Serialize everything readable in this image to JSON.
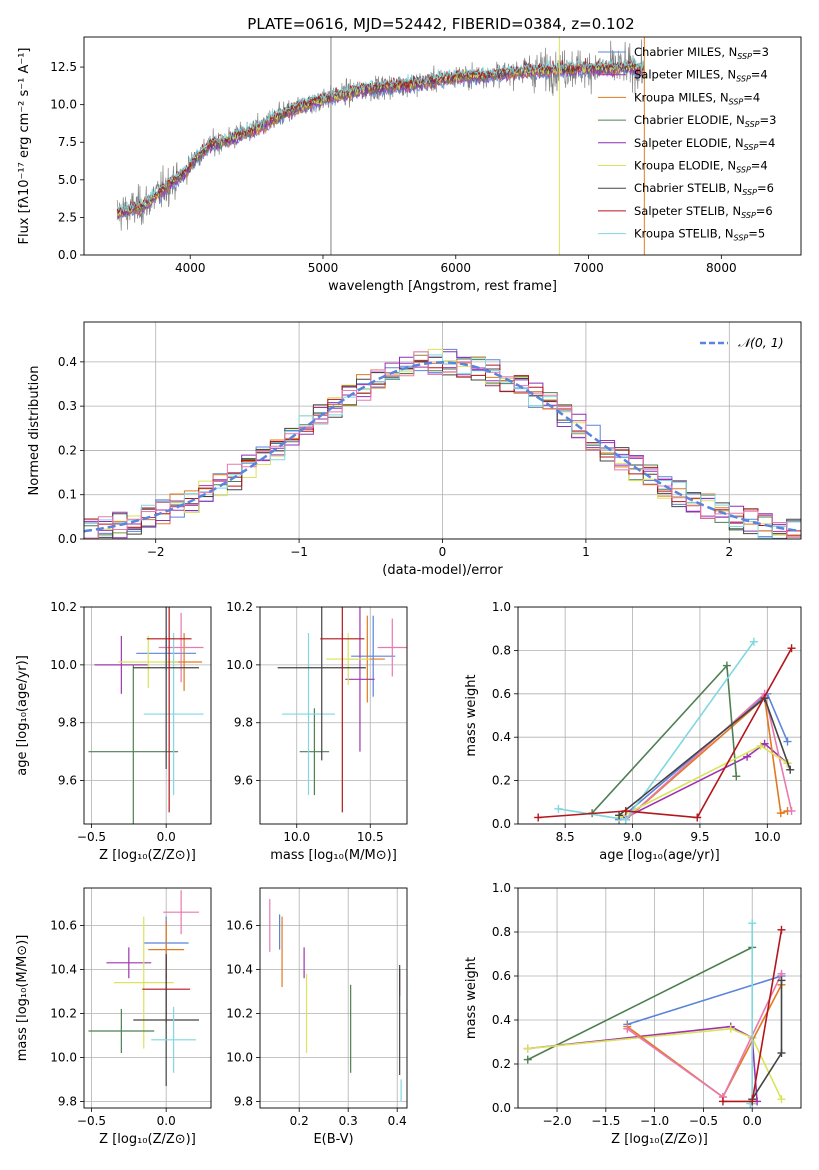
{
  "figure": {
    "title": "PLATE=0616, MJD=52442, FIBERID=0384, z=0.102"
  },
  "colors": {
    "Chabrier MILES": "#5b84dc",
    "Salpeter MILES": "#a034b0",
    "Kroupa MILES": "#e07a1f",
    "Chabrier ELODIE": "#4f7f52",
    "Salpeter ELODIE": "#8e2fb3",
    "Kroupa ELODIE": "#d9e45a",
    "Chabrier STELIB": "#444444",
    "Salpeter STELIB": "#b3161b",
    "Kroupa STELIB": "#7fd8e0",
    "pink": "#e879b0",
    "data": "#808080"
  },
  "chart_data": [
    {
      "id": "spectrum",
      "type": "line",
      "xlabel": "wavelength [Angstrom, rest frame]",
      "ylabel": "Flux [fλ10⁻¹⁷ erg cm⁻² s⁻¹ A⁻¹]",
      "xlim": [
        3200,
        8600
      ],
      "ylim": [
        0,
        14.5
      ],
      "xticks": [
        4000,
        5000,
        6000,
        7000,
        8000
      ],
      "yticks": [
        0.0,
        2.5,
        5.0,
        7.5,
        10.0,
        12.5
      ],
      "grid": false,
      "legend_position": "right",
      "legend": [
        {
          "label": "Chabrier MILES, N",
          "sub": "SSP",
          "suffix": "=3",
          "color_key": "Chabrier MILES"
        },
        {
          "label": "Salpeter MILES, N",
          "sub": "SSP",
          "suffix": "=4",
          "color_key": "Salpeter MILES"
        },
        {
          "label": "Kroupa MILES, N",
          "sub": "SSP",
          "suffix": "=4",
          "color_key": "Kroupa MILES"
        },
        {
          "label": "Chabrier ELODIE, N",
          "sub": "SSP",
          "suffix": "=3",
          "color_key": "Chabrier ELODIE"
        },
        {
          "label": "Salpeter ELODIE, N",
          "sub": "SSP",
          "suffix": "=4",
          "color_key": "Salpeter ELODIE"
        },
        {
          "label": "Kroupa ELODIE, N",
          "sub": "SSP",
          "suffix": "=4",
          "color_key": "Kroupa ELODIE"
        },
        {
          "label": "Chabrier STELIB, N",
          "sub": "SSP",
          "suffix": "=6",
          "color_key": "Chabrier STELIB"
        },
        {
          "label": "Salpeter STELIB, N",
          "sub": "SSP",
          "suffix": "=6",
          "color_key": "Salpeter STELIB"
        },
        {
          "label": "Kroupa STELIB, N",
          "sub": "SSP",
          "suffix": "=5",
          "color_key": "Kroupa STELIB"
        }
      ],
      "continuum": {
        "x": [
          3450,
          3550,
          3650,
          3750,
          3850,
          3950,
          4050,
          4150,
          4300,
          4500,
          4700,
          4900,
          5100,
          5300,
          5500,
          5700,
          5900,
          6100,
          6300,
          6500,
          6700,
          6900,
          7100,
          7300,
          7420
        ],
        "y": [
          2.8,
          3.0,
          3.3,
          4.0,
          4.8,
          5.4,
          6.5,
          7.3,
          7.7,
          8.4,
          9.4,
          10.1,
          10.6,
          11.0,
          11.2,
          11.4,
          11.7,
          11.9,
          12.0,
          12.2,
          12.3,
          12.4,
          12.4,
          12.5,
          12.3
        ]
      },
      "model_range": [
        3450,
        7420
      ],
      "data_range": [
        3450,
        7430
      ],
      "spikes": [
        {
          "x": 5060,
          "y": 0,
          "color_key": "data"
        },
        {
          "x": 6780,
          "y": 0,
          "color_key": "Kroupa ELODIE"
        },
        {
          "x": 7420,
          "y": 0,
          "color_key": "Kroupa MILES"
        }
      ]
    },
    {
      "id": "residuals",
      "type": "histogram",
      "xlabel": "(data-model)/error",
      "ylabel": "Normed distribution",
      "xlim": [
        -2.5,
        2.5
      ],
      "ylim": [
        0,
        0.49
      ],
      "xticks": [
        -2,
        -1,
        0,
        1,
        2
      ],
      "yticks": [
        0.0,
        0.1,
        0.2,
        0.3,
        0.4
      ],
      "bin_width": 0.1,
      "grid": true,
      "legend_position": "top-right",
      "legend": [
        {
          "label": "𝒩(0, 1)",
          "style": "dashed",
          "color_key": "Chabrier MILES"
        }
      ]
    },
    {
      "id": "age-vs-Z",
      "type": "errorbar",
      "xlabel": "Z [log₁₀(Z/Z⊙)]",
      "ylabel": "age  [log₁₀(age/yr)]",
      "xlim": [
        -0.55,
        0.3
      ],
      "ylim": [
        9.45,
        10.2
      ],
      "xticks": [
        -0.5,
        0.0
      ],
      "yticks": [
        9.6,
        9.8,
        10.0,
        10.2
      ],
      "grid": true,
      "points": [
        {
          "x": 0.0,
          "y": 10.04,
          "xerr": 0.2,
          "yerr": 0.06,
          "color_key": "Chabrier MILES"
        },
        {
          "x": 0.12,
          "y": 10.01,
          "xerr": 0.12,
          "yerr": 0.1,
          "color_key": "Kroupa MILES"
        },
        {
          "x": 0.1,
          "y": 10.06,
          "xerr": 0.15,
          "yerr": 0.12,
          "color_key": "pink"
        },
        {
          "x": -0.3,
          "y": 10.0,
          "xerr": 0.18,
          "yerr": 0.1,
          "color_key": "Salpeter MILES"
        },
        {
          "x": -0.12,
          "y": 10.01,
          "xerr": 0.2,
          "yerr": 0.09,
          "color_key": "Kroupa ELODIE"
        },
        {
          "x": -0.22,
          "y": 9.7,
          "xerr": 0.3,
          "yerr": 0.3,
          "color_key": "Chabrier ELODIE"
        },
        {
          "x": 0.05,
          "y": 9.83,
          "xerr": 0.2,
          "yerr": 0.28,
          "color_key": "Kroupa STELIB"
        },
        {
          "x": 0.0,
          "y": 9.99,
          "xerr": 0.22,
          "yerr": 0.35,
          "color_key": "Chabrier STELIB"
        },
        {
          "x": 0.02,
          "y": 10.09,
          "xerr": 0.15,
          "yerr": 0.6,
          "color_key": "Salpeter STELIB"
        }
      ]
    },
    {
      "id": "age-vs-mass",
      "type": "errorbar",
      "xlabel": "mass [log₁₀(M/M⊙)]",
      "ylabel": "",
      "xlim": [
        9.75,
        10.75
      ],
      "ylim": [
        9.45,
        10.2
      ],
      "xticks": [
        10.0,
        10.5
      ],
      "yticks": [
        9.6,
        9.8,
        10.0,
        10.2
      ],
      "grid": true,
      "points": [
        {
          "x": 10.52,
          "y": 10.03,
          "xerr": 0.15,
          "yerr": 0.14,
          "color_key": "Chabrier MILES"
        },
        {
          "x": 10.48,
          "y": 10.02,
          "xerr": 0.12,
          "yerr": 0.15,
          "color_key": "Kroupa MILES"
        },
        {
          "x": 10.65,
          "y": 10.06,
          "xerr": 0.1,
          "yerr": 0.1,
          "color_key": "pink"
        },
        {
          "x": 10.43,
          "y": 9.95,
          "xerr": 0.1,
          "yerr": 0.25,
          "color_key": "Salpeter MILES"
        },
        {
          "x": 10.35,
          "y": 10.02,
          "xerr": 0.15,
          "yerr": 0.09,
          "color_key": "Kroupa ELODIE"
        },
        {
          "x": 10.12,
          "y": 9.7,
          "xerr": 0.1,
          "yerr": 0.15,
          "color_key": "Chabrier ELODIE"
        },
        {
          "x": 10.08,
          "y": 9.83,
          "xerr": 0.18,
          "yerr": 0.28,
          "color_key": "Kroupa STELIB"
        },
        {
          "x": 10.17,
          "y": 9.99,
          "xerr": 0.3,
          "yerr": 0.32,
          "color_key": "Chabrier STELIB"
        },
        {
          "x": 10.31,
          "y": 10.09,
          "xerr": 0.15,
          "yerr": 0.6,
          "color_key": "Salpeter STELIB"
        }
      ]
    },
    {
      "id": "weight-vs-age",
      "type": "line",
      "xlabel": "age  [log₁₀(age/yr)]",
      "ylabel": "mass weight",
      "xlim": [
        8.15,
        10.25
      ],
      "ylim": [
        0.0,
        1.0
      ],
      "xticks": [
        8.5,
        9.0,
        9.5,
        10.0
      ],
      "yticks": [
        0.0,
        0.2,
        0.4,
        0.6,
        0.8,
        1.0
      ],
      "grid": true,
      "series": [
        {
          "color_key": "Chabrier MILES",
          "x": [
            8.9,
            10.0,
            10.15
          ],
          "y": [
            0.02,
            0.6,
            0.38
          ]
        },
        {
          "color_key": "Salpeter MILES",
          "x": [
            8.95,
            9.85,
            9.98,
            10.15
          ],
          "y": [
            0.03,
            0.31,
            0.37,
            0.28
          ]
        },
        {
          "color_key": "Kroupa MILES",
          "x": [
            8.95,
            9.98,
            10.1,
            10.15
          ],
          "y": [
            0.02,
            0.58,
            0.05,
            0.06
          ]
        },
        {
          "color_key": "pink",
          "x": [
            8.95,
            9.98,
            10.18
          ],
          "y": [
            0.02,
            0.6,
            0.06
          ]
        },
        {
          "color_key": "Chabrier ELODIE",
          "x": [
            8.7,
            9.7,
            9.77
          ],
          "y": [
            0.05,
            0.73,
            0.22
          ]
        },
        {
          "color_key": "Kroupa ELODIE",
          "x": [
            8.9,
            9.95,
            10.15
          ],
          "y": [
            0.03,
            0.36,
            0.28
          ]
        },
        {
          "color_key": "Kroupa STELIB",
          "x": [
            8.45,
            8.95,
            9.9
          ],
          "y": [
            0.07,
            0.02,
            0.84
          ]
        },
        {
          "color_key": "Chabrier STELIB",
          "x": [
            8.9,
            9.98,
            10.17
          ],
          "y": [
            0.04,
            0.58,
            0.25
          ]
        },
        {
          "color_key": "Salpeter STELIB",
          "x": [
            8.3,
            8.95,
            9.48,
            10.18
          ],
          "y": [
            0.03,
            0.06,
            0.03,
            0.81
          ]
        }
      ]
    },
    {
      "id": "mass-vs-Z",
      "type": "errorbar",
      "xlabel": "Z [log₁₀(Z/Z⊙)]",
      "ylabel": "mass [log₁₀(M/M⊙)]",
      "xlim": [
        -0.55,
        0.3
      ],
      "ylim": [
        9.77,
        10.77
      ],
      "xticks": [
        -0.5,
        0.0
      ],
      "yticks": [
        9.8,
        10.0,
        10.2,
        10.4,
        10.6
      ],
      "grid": true,
      "points": [
        {
          "x": 0.1,
          "y": 10.66,
          "xerr": 0.12,
          "yerr": 0.1,
          "color_key": "pink"
        },
        {
          "x": 0.0,
          "y": 10.52,
          "xerr": 0.15,
          "yerr": 0.12,
          "color_key": "Chabrier MILES"
        },
        {
          "x": 0.0,
          "y": 10.49,
          "xerr": 0.12,
          "yerr": 0.13,
          "color_key": "Kroupa MILES"
        },
        {
          "x": -0.25,
          "y": 10.43,
          "xerr": 0.15,
          "yerr": 0.07,
          "color_key": "Salpeter MILES"
        },
        {
          "x": -0.15,
          "y": 10.34,
          "xerr": 0.2,
          "yerr": 0.3,
          "color_key": "Kroupa ELODIE"
        },
        {
          "x": 0.0,
          "y": 10.31,
          "xerr": 0.16,
          "yerr": 0.15,
          "color_key": "Salpeter STELIB"
        },
        {
          "x": 0.0,
          "y": 10.17,
          "xerr": 0.22,
          "yerr": 0.3,
          "color_key": "Chabrier STELIB"
        },
        {
          "x": -0.3,
          "y": 10.12,
          "xerr": 0.22,
          "yerr": 0.1,
          "color_key": "Chabrier ELODIE"
        },
        {
          "x": 0.05,
          "y": 10.08,
          "xerr": 0.15,
          "yerr": 0.15,
          "color_key": "Kroupa STELIB"
        }
      ]
    },
    {
      "id": "mass-vs-ebv",
      "type": "errorbar",
      "xlabel": "E(B-V)",
      "ylabel": "",
      "xlim": [
        0.12,
        0.42
      ],
      "ylim": [
        9.77,
        10.77
      ],
      "xticks": [
        0.2,
        0.3,
        0.4
      ],
      "yticks": [
        9.8,
        10.0,
        10.2,
        10.4,
        10.6
      ],
      "grid": true,
      "points": [
        {
          "x": 0.14,
          "y": 10.6,
          "xerr": 0,
          "yerr": 0.12,
          "color_key": "pink"
        },
        {
          "x": 0.16,
          "y": 10.57,
          "xerr": 0,
          "yerr": 0.08,
          "color_key": "Chabrier MILES"
        },
        {
          "x": 0.165,
          "y": 10.48,
          "xerr": 0,
          "yerr": 0.16,
          "color_key": "Kroupa MILES"
        },
        {
          "x": 0.21,
          "y": 10.43,
          "xerr": 0,
          "yerr": 0.07,
          "color_key": "Salpeter MILES"
        },
        {
          "x": 0.215,
          "y": 10.2,
          "xerr": 0,
          "yerr": 0.18,
          "color_key": "Kroupa ELODIE"
        },
        {
          "x": 0.305,
          "y": 10.13,
          "xerr": 0,
          "yerr": 0.2,
          "color_key": "Chabrier ELODIE"
        },
        {
          "x": 0.405,
          "y": 10.34,
          "xerr": 0,
          "yerr": 0.06,
          "color_key": "Salpeter STELIB"
        },
        {
          "x": 0.405,
          "y": 10.17,
          "xerr": 0,
          "yerr": 0.25,
          "color_key": "Chabrier STELIB"
        },
        {
          "x": 0.408,
          "y": 9.85,
          "xerr": 0,
          "yerr": 0.05,
          "color_key": "Kroupa STELIB"
        }
      ]
    },
    {
      "id": "weight-vs-Z",
      "type": "line",
      "xlabel": "Z [log₁₀(Z/Z⊙)]",
      "ylabel": "mass weight",
      "xlim": [
        -2.4,
        0.5
      ],
      "ylim": [
        0.0,
        1.0
      ],
      "xticks": [
        -2.0,
        -1.5,
        -1.0,
        -0.5,
        0.0
      ],
      "yticks": [
        0.0,
        0.2,
        0.4,
        0.6,
        0.8,
        1.0
      ],
      "grid": true,
      "series": [
        {
          "color_key": "Chabrier ELODIE",
          "x": [
            -2.3,
            0.0
          ],
          "y": [
            0.22,
            0.73
          ]
        },
        {
          "color_key": "Chabrier MILES",
          "x": [
            -1.28,
            0.3
          ],
          "y": [
            0.38,
            0.6
          ]
        },
        {
          "color_key": "Salpeter MILES",
          "x": [
            -2.3,
            -0.22,
            0.0,
            0.05
          ],
          "y": [
            0.27,
            0.37,
            0.32,
            0.03
          ]
        },
        {
          "color_key": "Kroupa ELODIE",
          "x": [
            -2.3,
            -0.22,
            0.0,
            0.3
          ],
          "y": [
            0.27,
            0.36,
            0.32,
            0.04
          ]
        },
        {
          "color_key": "Kroupa MILES",
          "x": [
            -1.28,
            -0.3,
            0.3
          ],
          "y": [
            0.37,
            0.05,
            0.56
          ]
        },
        {
          "color_key": "pink",
          "x": [
            -1.28,
            -0.3,
            0.3
          ],
          "y": [
            0.36,
            0.05,
            0.61
          ]
        },
        {
          "color_key": "Kroupa STELIB",
          "x": [
            0.0,
            0.0,
            -0.02
          ],
          "y": [
            0.84,
            0.02,
            0.02
          ]
        },
        {
          "color_key": "Chabrier STELIB",
          "x": [
            0.0,
            0.3,
            0.3
          ],
          "y": [
            0.04,
            0.25,
            0.58
          ]
        },
        {
          "color_key": "Salpeter STELIB",
          "x": [
            -0.3,
            0.0,
            0.3
          ],
          "y": [
            0.03,
            0.03,
            0.81
          ]
        }
      ]
    }
  ]
}
